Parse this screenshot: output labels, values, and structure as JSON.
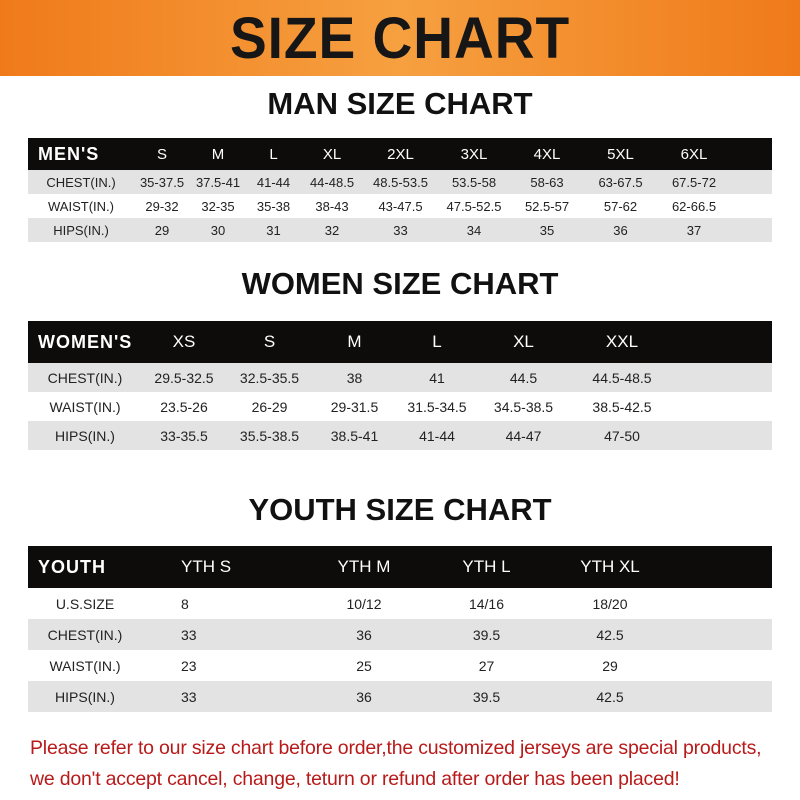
{
  "banner": "SIZE CHART",
  "men": {
    "title": "MAN SIZE CHART",
    "header": [
      "MEN'S",
      "S",
      "M",
      "L",
      "XL",
      "2XL",
      "3XL",
      "4XL",
      "5XL",
      "6XL"
    ],
    "rows": [
      [
        "CHEST(IN.)",
        "35-37.5",
        "37.5-41",
        "41-44",
        "44-48.5",
        "48.5-53.5",
        "53.5-58",
        "58-63",
        "63-67.5",
        "67.5-72"
      ],
      [
        "WAIST(IN.)",
        "29-32",
        "32-35",
        "35-38",
        "38-43",
        "43-47.5",
        "47.5-52.5",
        "52.5-57",
        "57-62",
        "62-66.5"
      ],
      [
        "HIPS(IN.)",
        "29",
        "30",
        "31",
        "32",
        "33",
        "34",
        "35",
        "36",
        "37"
      ]
    ]
  },
  "women": {
    "title": "WOMEN SIZE CHART",
    "header": [
      "WOMEN'S",
      "XS",
      "S",
      "M",
      "L",
      "XL",
      "XXL"
    ],
    "rows": [
      [
        "CHEST(IN.)",
        "29.5-32.5",
        "32.5-35.5",
        "38",
        "41",
        "44.5",
        "44.5-48.5"
      ],
      [
        "WAIST(IN.)",
        "23.5-26",
        "26-29",
        "29-31.5",
        "31.5-34.5",
        "34.5-38.5",
        "38.5-42.5"
      ],
      [
        "HIPS(IN.)",
        "33-35.5",
        "35.5-38.5",
        "38.5-41",
        "41-44",
        "44-47",
        "47-50"
      ]
    ]
  },
  "youth": {
    "title": "YOUTH SIZE CHART",
    "header": [
      "YOUTH",
      "YTH S",
      "YTH M",
      "YTH L",
      "YTH XL"
    ],
    "rows": [
      [
        "U.S.SIZE",
        "8",
        "10/12",
        "14/16",
        "18/20"
      ],
      [
        "CHEST(IN.)",
        "33",
        "36",
        "39.5",
        "42.5"
      ],
      [
        "WAIST(IN.)",
        "23",
        "25",
        "27",
        "29"
      ],
      [
        "HIPS(IN.)",
        "33",
        "36",
        "39.5",
        "42.5"
      ]
    ]
  },
  "note": [
    "Please refer to our size chart before order,the customized jerseys are special products,",
    "we don't accept cancel, change, teturn or refund after order has been placed!"
  ],
  "colors": {
    "banner": "#f28a2a",
    "header_row": "#0e0b0b",
    "note": "#b81a1a",
    "stripe": "#e3e3e3"
  }
}
